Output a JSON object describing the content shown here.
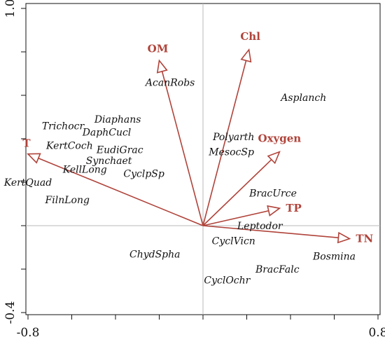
{
  "chart_data": {
    "type": "scatter",
    "subtype": "rda-biplot",
    "title": "",
    "xlabel": "",
    "ylabel": "",
    "xlim": [
      -0.85,
      0.85
    ],
    "ylim": [
      -0.42,
      1.03
    ],
    "x_tick_labels": [
      {
        "value": -0.8,
        "label": "-0.8"
      },
      {
        "value": 0.8,
        "label": "0.8"
      }
    ],
    "y_tick_labels": [
      {
        "value": 1.0,
        "label": "1.0"
      },
      {
        "value": -0.4,
        "label": "-0.4"
      }
    ],
    "x_minor_ticks": [
      -0.8,
      -0.6,
      -0.4,
      -0.2,
      0.0,
      0.2,
      0.4,
      0.6,
      0.8
    ],
    "y_minor_ticks": [
      1.0,
      0.8,
      0.6,
      0.4,
      0.2,
      0.0,
      -0.2,
      -0.4
    ],
    "zero_lines": true,
    "grid": false,
    "arrow_color": "#b0433a",
    "environmental_vectors": [
      {
        "name": "OM",
        "x": -0.2,
        "y": 0.76
      },
      {
        "name": "Chl",
        "x": 0.21,
        "y": 0.81
      },
      {
        "name": "T",
        "x": -0.8,
        "y": 0.33
      },
      {
        "name": "Oxygen",
        "x": 0.35,
        "y": 0.34
      },
      {
        "name": "TP",
        "x": 0.35,
        "y": 0.08
      },
      {
        "name": "TN",
        "x": 0.67,
        "y": -0.06
      }
    ],
    "species": [
      {
        "name": "AcanRobs",
        "x": -0.15,
        "y": 0.66
      },
      {
        "name": "Asplanch",
        "x": 0.46,
        "y": 0.59
      },
      {
        "name": "Diaphans",
        "x": -0.39,
        "y": 0.49
      },
      {
        "name": "Trichocr",
        "x": -0.64,
        "y": 0.46
      },
      {
        "name": "DaphCucl",
        "x": -0.44,
        "y": 0.43
      },
      {
        "name": "Polyarth",
        "x": 0.14,
        "y": 0.41
      },
      {
        "name": "KertCoch",
        "x": -0.61,
        "y": 0.37
      },
      {
        "name": "EudiGrac",
        "x": -0.38,
        "y": 0.35
      },
      {
        "name": "MesocSp",
        "x": 0.13,
        "y": 0.34
      },
      {
        "name": "Synchaet",
        "x": -0.43,
        "y": 0.3
      },
      {
        "name": "KellLong",
        "x": -0.54,
        "y": 0.26
      },
      {
        "name": "CyclpSp",
        "x": -0.27,
        "y": 0.24
      },
      {
        "name": "KertQuad",
        "x": -0.8,
        "y": 0.2
      },
      {
        "name": "BracUrce",
        "x": 0.32,
        "y": 0.15
      },
      {
        "name": "FilnLong",
        "x": -0.62,
        "y": 0.12
      },
      {
        "name": "Leptodor",
        "x": 0.26,
        "y": 0.0
      },
      {
        "name": "CyclVicn",
        "x": 0.14,
        "y": -0.07
      },
      {
        "name": "ChydSpha",
        "x": -0.22,
        "y": -0.13
      },
      {
        "name": "Bosmina",
        "x": 0.6,
        "y": -0.14
      },
      {
        "name": "BracFalc",
        "x": 0.34,
        "y": -0.2
      },
      {
        "name": "CyclOchr",
        "x": 0.11,
        "y": -0.25
      }
    ]
  }
}
